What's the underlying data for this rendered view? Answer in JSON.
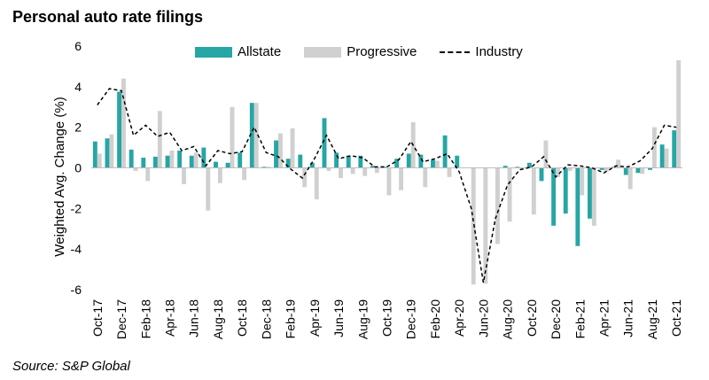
{
  "title": "Personal auto rate filings",
  "source": "Source: S&P Global",
  "colors": {
    "allstate": "#26A6A4",
    "progressive": "#D0D0D0",
    "industry": "#000000"
  },
  "chart_data": {
    "type": "bar",
    "ylabel": "Weighted Avg. Change (%)",
    "ylim": [
      -6,
      6
    ],
    "yticks": [
      -6,
      -4,
      -2,
      0,
      2,
      4,
      6
    ],
    "categories": [
      "Oct-17",
      "Nov-17",
      "Dec-17",
      "Jan-18",
      "Feb-18",
      "Mar-18",
      "Apr-18",
      "May-18",
      "Jun-18",
      "Jul-18",
      "Aug-18",
      "Sep-18",
      "Oct-18",
      "Nov-18",
      "Dec-18",
      "Jan-19",
      "Feb-19",
      "Mar-19",
      "Apr-19",
      "May-19",
      "Jun-19",
      "Jul-19",
      "Aug-19",
      "Sep-19",
      "Oct-19",
      "Nov-19",
      "Dec-19",
      "Jan-20",
      "Feb-20",
      "Mar-20",
      "Apr-20",
      "May-20",
      "Jun-20",
      "Jul-20",
      "Aug-20",
      "Sep-20",
      "Oct-20",
      "Nov-20",
      "Dec-20",
      "Jan-21",
      "Feb-21",
      "Mar-21",
      "Apr-21",
      "May-21",
      "Jun-21",
      "Jul-21",
      "Aug-21",
      "Sep-21",
      "Oct-21"
    ],
    "xtick_labels": [
      "Oct-17",
      "Dec-17",
      "Feb-18",
      "Apr-18",
      "Jun-18",
      "Aug-18",
      "Oct-18",
      "Dec-18",
      "Feb-19",
      "Apr-19",
      "Jun-19",
      "Aug-19",
      "Oct-19",
      "Dec-19",
      "Feb-20",
      "Apr-20",
      "Jun-20",
      "Aug-20",
      "Oct-20",
      "Dec-20",
      "Feb-21",
      "Apr-21",
      "Jun-21",
      "Aug-21",
      "Oct-21"
    ],
    "series": [
      {
        "name": "Allstate",
        "kind": "bar",
        "values": [
          1.3,
          1.45,
          3.75,
          0.9,
          0.5,
          0.55,
          0.6,
          0.85,
          0.6,
          1.0,
          0.3,
          0.25,
          0.75,
          3.2,
          0.05,
          1.35,
          0.45,
          0.65,
          0.25,
          2.45,
          0.75,
          0.6,
          0.6,
          0.1,
          0.05,
          0.45,
          0.7,
          0.65,
          0.4,
          1.6,
          0.6,
          0.0,
          0.0,
          0.0,
          0.1,
          0.05,
          0.25,
          -0.65,
          -2.85,
          -2.25,
          -3.85,
          -2.5,
          -0.1,
          0.05,
          -0.35,
          -0.25,
          -0.1,
          1.15,
          1.85
        ]
      },
      {
        "name": "Progressive",
        "kind": "bar",
        "values": [
          0.7,
          1.65,
          4.4,
          -0.15,
          -0.65,
          2.8,
          0.85,
          -0.8,
          0.75,
          -2.1,
          -0.75,
          3.0,
          -0.6,
          3.2,
          0.05,
          1.7,
          1.95,
          -0.95,
          -1.55,
          -0.15,
          -0.5,
          -0.3,
          -0.4,
          -0.25,
          -1.35,
          -1.1,
          2.25,
          -0.95,
          0.35,
          -0.45,
          0.0,
          -5.75,
          -5.7,
          -3.75,
          -2.65,
          -0.1,
          -2.3,
          1.35,
          -0.45,
          -0.15,
          -1.35,
          -2.85,
          -0.2,
          0.4,
          -1.05,
          -0.3,
          2.0,
          0.95,
          5.3
        ]
      },
      {
        "name": "Industry",
        "kind": "line",
        "values": [
          3.1,
          3.9,
          3.8,
          1.6,
          2.1,
          1.55,
          1.75,
          0.85,
          1.05,
          0.1,
          0.85,
          0.7,
          0.8,
          2.0,
          0.75,
          0.55,
          -0.05,
          -0.5,
          0.45,
          1.6,
          0.45,
          0.6,
          0.5,
          0.05,
          0.05,
          0.4,
          1.3,
          0.3,
          0.45,
          0.7,
          -0.2,
          -2.0,
          -5.65,
          -2.5,
          -0.85,
          -0.1,
          0.05,
          0.55,
          -0.45,
          0.15,
          0.1,
          0.0,
          -0.25,
          0.1,
          0.05,
          0.35,
          0.95,
          2.1,
          2.0
        ]
      }
    ]
  }
}
